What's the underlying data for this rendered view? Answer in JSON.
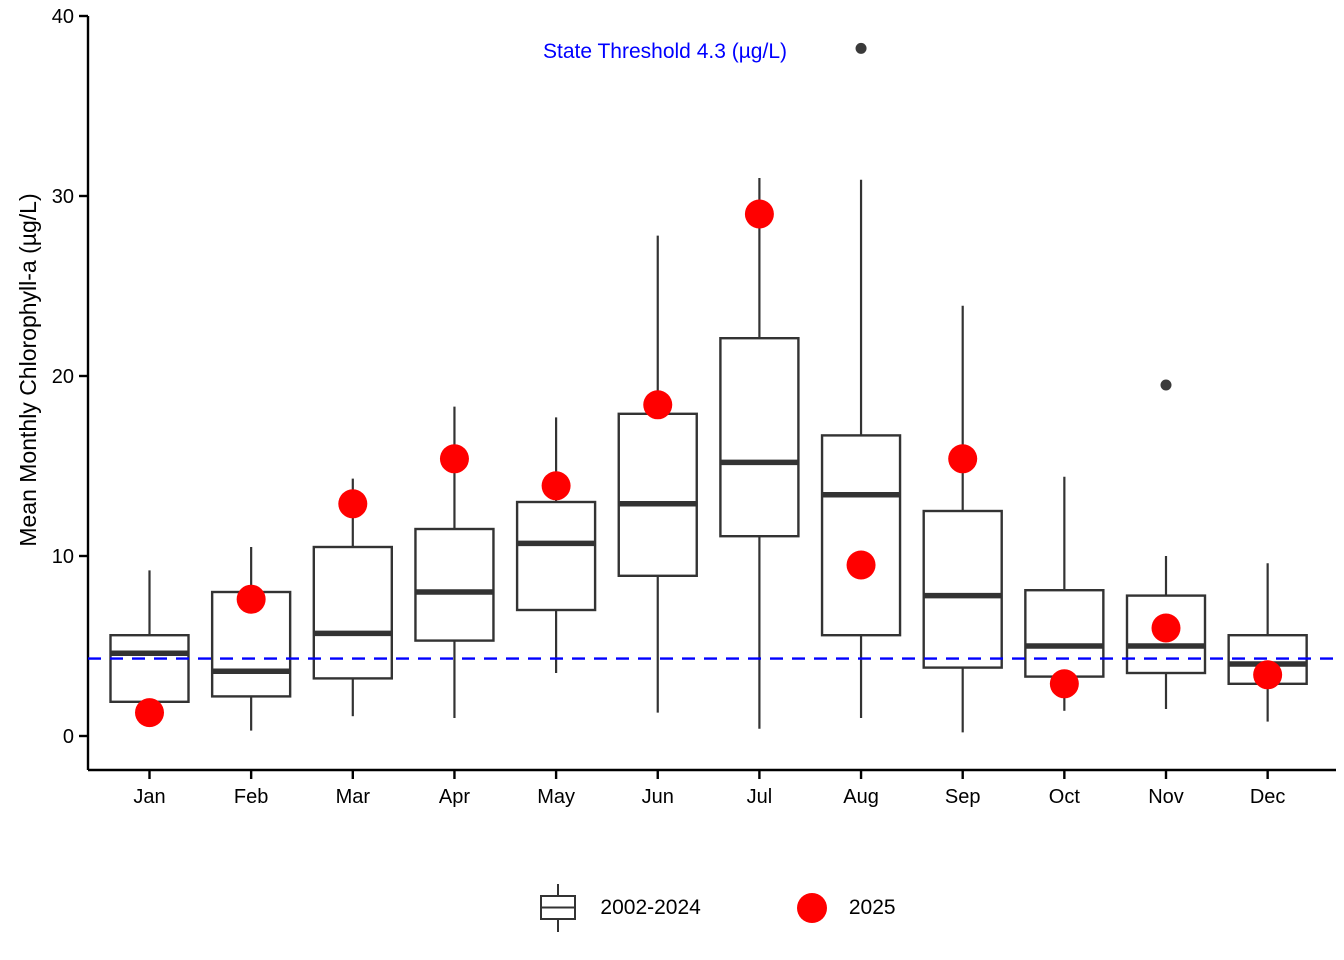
{
  "chart_data": {
    "type": "boxplot",
    "title": "",
    "xlabel": "",
    "ylabel": "Mean Monthly Chlorophyll-a (µg/L)",
    "ylim": [
      0,
      40
    ],
    "yticks": [
      0,
      10,
      20,
      30,
      40
    ],
    "grid": false,
    "legend_position": "bottom",
    "categories": [
      "Jan",
      "Feb",
      "Mar",
      "Apr",
      "May",
      "Jun",
      "Jul",
      "Aug",
      "Sep",
      "Oct",
      "Nov",
      "Dec"
    ],
    "threshold": {
      "value": 4.3,
      "label": "State Threshold 4.3 (µg/L)",
      "color": "#0000ff",
      "style": "dashed"
    },
    "series": [
      {
        "name": "2002-2024",
        "type": "box",
        "border_color": "#333333",
        "fill_color": "#ffffff",
        "boxes": [
          {
            "category": "Jan",
            "min": 1.3,
            "q1": 1.9,
            "median": 4.6,
            "q3": 5.6,
            "max": 9.2,
            "outliers": []
          },
          {
            "category": "Feb",
            "min": 0.3,
            "q1": 2.2,
            "median": 3.6,
            "q3": 8.0,
            "max": 10.5,
            "outliers": []
          },
          {
            "category": "Mar",
            "min": 1.1,
            "q1": 3.2,
            "median": 5.7,
            "q3": 10.5,
            "max": 14.3,
            "outliers": []
          },
          {
            "category": "Apr",
            "min": 1.0,
            "q1": 5.3,
            "median": 8.0,
            "q3": 11.5,
            "max": 18.3,
            "outliers": []
          },
          {
            "category": "May",
            "min": 3.5,
            "q1": 7.0,
            "median": 10.7,
            "q3": 13.0,
            "max": 17.7,
            "outliers": []
          },
          {
            "category": "Jun",
            "min": 1.3,
            "q1": 8.9,
            "median": 12.9,
            "q3": 17.9,
            "max": 27.8,
            "outliers": []
          },
          {
            "category": "Jul",
            "min": 0.4,
            "q1": 11.1,
            "median": 15.2,
            "q3": 22.1,
            "max": 31.0,
            "outliers": []
          },
          {
            "category": "Aug",
            "min": 1.0,
            "q1": 5.6,
            "median": 13.4,
            "q3": 16.7,
            "max": 30.9,
            "outliers": [
              38.2
            ]
          },
          {
            "category": "Sep",
            "min": 0.2,
            "q1": 3.8,
            "median": 7.8,
            "q3": 12.5,
            "max": 23.9,
            "outliers": []
          },
          {
            "category": "Oct",
            "min": 1.4,
            "q1": 3.3,
            "median": 5.0,
            "q3": 8.1,
            "max": 14.4,
            "outliers": []
          },
          {
            "category": "Nov",
            "min": 1.5,
            "q1": 3.5,
            "median": 5.0,
            "q3": 7.8,
            "max": 10.0,
            "outliers": [
              19.5
            ]
          },
          {
            "category": "Dec",
            "min": 0.8,
            "q1": 2.9,
            "median": 4.0,
            "q3": 5.6,
            "max": 9.6,
            "outliers": []
          }
        ]
      },
      {
        "name": "2025",
        "type": "scatter",
        "color": "#ff0000",
        "values": [
          1.3,
          7.6,
          12.9,
          15.4,
          13.9,
          18.4,
          29.0,
          9.5,
          15.4,
          2.9,
          6.0,
          3.4
        ]
      }
    ],
    "legend": [
      {
        "glyph": "boxplot",
        "label": "2002-2024"
      },
      {
        "glyph": "red-dot",
        "label": "2025"
      }
    ],
    "colors": {
      "axis": "#000000",
      "box_border": "#333333",
      "median": "#333333",
      "outlier": "#3a3a3a",
      "dot_2025": "#ff0000",
      "threshold": "#0000ff"
    }
  }
}
